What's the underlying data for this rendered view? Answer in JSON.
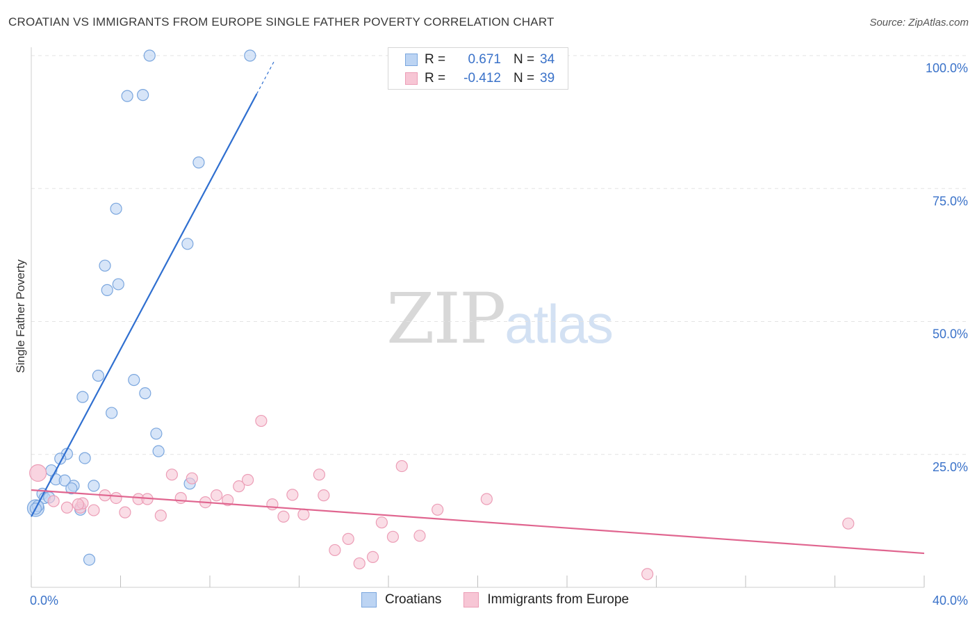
{
  "title": "CROATIAN VS IMMIGRANTS FROM EUROPE SINGLE FATHER POVERTY CORRELATION CHART",
  "source": "Source: ZipAtlas.com",
  "watermark": {
    "zip": "ZIP",
    "atlas": "atlas"
  },
  "legend": {
    "r_label": "R =",
    "n_label": "N =",
    "series1": {
      "r": "0.671",
      "n": "34"
    },
    "series2": {
      "r": "-0.412",
      "n": "39"
    }
  },
  "bottom_legend": {
    "series1": "Croatians",
    "series2": "Immigrants from Europe"
  },
  "colors": {
    "blue_fill": "#bcd4f3",
    "blue_stroke": "#7aa6de",
    "blue_line": "#2f6fd0",
    "pink_fill": "#f7c6d5",
    "pink_stroke": "#ec9db6",
    "pink_line": "#e0658f",
    "axis_text": "#3a72c9",
    "grid": "#e3e3e3"
  },
  "chart_data": {
    "type": "scatter",
    "title": "CROATIAN VS IMMIGRANTS FROM EUROPE SINGLE FATHER POVERTY CORRELATION CHART",
    "xlabel": "",
    "ylabel": "Single Father Poverty",
    "xlim": [
      0,
      40
    ],
    "ylim": [
      0,
      105
    ],
    "x_tick_labels": [
      "0.0%",
      "40.0%"
    ],
    "y_ticks": [
      25,
      50,
      75,
      100
    ],
    "y_tick_labels": [
      "25.0%",
      "50.0%",
      "75.0%",
      "100.0%"
    ],
    "grid": true,
    "legend_position": "top-center",
    "series": [
      {
        "name": "Croatians",
        "r": 0.671,
        "n": 34,
        "points": [
          [
            5.3,
            100
          ],
          [
            9.8,
            100
          ],
          [
            4.3,
            92.4
          ],
          [
            5.0,
            92.6
          ],
          [
            7.5,
            79.9
          ],
          [
            3.8,
            71.2
          ],
          [
            7.0,
            64.6
          ],
          [
            3.3,
            60.5
          ],
          [
            3.9,
            57.0
          ],
          [
            3.4,
            55.9
          ],
          [
            3.0,
            39.8
          ],
          [
            4.6,
            39.0
          ],
          [
            2.3,
            35.8
          ],
          [
            5.1,
            36.5
          ],
          [
            3.6,
            32.8
          ],
          [
            5.6,
            28.9
          ],
          [
            5.7,
            25.6
          ],
          [
            1.6,
            25.1
          ],
          [
            1.3,
            24.2
          ],
          [
            2.4,
            24.3
          ],
          [
            0.9,
            22.0
          ],
          [
            1.1,
            20.3
          ],
          [
            1.5,
            20.1
          ],
          [
            1.9,
            19.1
          ],
          [
            2.8,
            19.1
          ],
          [
            7.1,
            19.5
          ],
          [
            1.8,
            18.6
          ],
          [
            0.5,
            17.6
          ],
          [
            0.6,
            16.8
          ],
          [
            0.8,
            16.9
          ],
          [
            0.3,
            15.3
          ],
          [
            0.2,
            14.8
          ],
          [
            2.2,
            14.6
          ],
          [
            2.6,
            5.2
          ]
        ],
        "big_points": [
          [
            0.2,
            14.9
          ]
        ],
        "trend": {
          "x1": 0.0,
          "y1": 13.3,
          "x2": 10.1,
          "y2": 92.8,
          "dash_x2": 10.9
        }
      },
      {
        "name": "Immigrants from Europe",
        "r": -0.412,
        "n": 39,
        "points": [
          [
            10.3,
            31.3
          ],
          [
            16.6,
            22.8
          ],
          [
            6.3,
            21.2
          ],
          [
            7.2,
            20.5
          ],
          [
            9.7,
            20.2
          ],
          [
            12.9,
            21.2
          ],
          [
            9.3,
            19.0
          ],
          [
            8.3,
            17.3
          ],
          [
            11.7,
            17.4
          ],
          [
            13.1,
            17.3
          ],
          [
            3.3,
            17.3
          ],
          [
            3.8,
            16.8
          ],
          [
            4.8,
            16.6
          ],
          [
            5.2,
            16.6
          ],
          [
            6.7,
            16.8
          ],
          [
            7.8,
            16.0
          ],
          [
            8.8,
            16.4
          ],
          [
            10.8,
            15.6
          ],
          [
            18.2,
            14.6
          ],
          [
            20.4,
            16.6
          ],
          [
            1.0,
            16.2
          ],
          [
            1.6,
            15.0
          ],
          [
            2.2,
            15.0
          ],
          [
            2.3,
            15.8
          ],
          [
            2.8,
            14.5
          ],
          [
            4.2,
            14.1
          ],
          [
            5.8,
            13.5
          ],
          [
            11.3,
            13.3
          ],
          [
            12.2,
            13.7
          ],
          [
            15.7,
            12.2
          ],
          [
            14.2,
            9.1
          ],
          [
            16.2,
            9.5
          ],
          [
            17.4,
            9.7
          ],
          [
            13.6,
            7.0
          ],
          [
            14.7,
            4.5
          ],
          [
            15.3,
            5.7
          ],
          [
            36.6,
            12.0
          ],
          [
            27.6,
            2.5
          ],
          [
            2.1,
            15.6
          ]
        ],
        "big_points": [
          [
            0.3,
            21.5
          ]
        ],
        "trend": {
          "x1": 0.0,
          "y1": 18.3,
          "x2": 40.0,
          "y2": 6.4
        }
      }
    ]
  }
}
